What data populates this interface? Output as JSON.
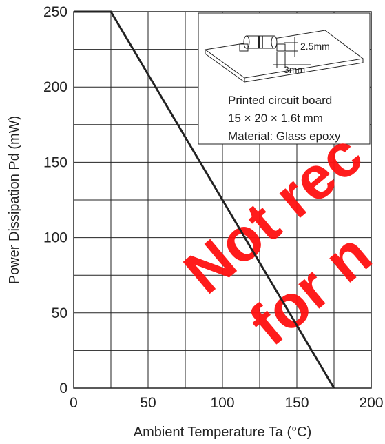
{
  "chart_data": {
    "type": "line",
    "xlabel": "Ambient Temperature   Ta   (°C)",
    "ylabel": "Power Dissipation   Pd   (mW)",
    "xlim": [
      0,
      200
    ],
    "ylim": [
      0,
      250
    ],
    "xticks": [
      0,
      50,
      100,
      150,
      200
    ],
    "yticks": [
      0,
      50,
      100,
      150,
      200,
      250
    ],
    "grid": true,
    "series": [
      {
        "x": [
          0,
          25,
          175
        ],
        "y": [
          250,
          250,
          0
        ]
      }
    ]
  },
  "inset": {
    "dim_width": "2.5mm",
    "dim_length": "3mm",
    "line1": "Printed circuit board",
    "line2": "15 × 20 × 1.6t mm",
    "line3": "Material: Glass epoxy"
  },
  "watermark": {
    "line1": "Not rec",
    "line2": "for n"
  },
  "colors": {
    "line": "#222222",
    "grid": "#222222",
    "watermark": "#ff1010"
  }
}
